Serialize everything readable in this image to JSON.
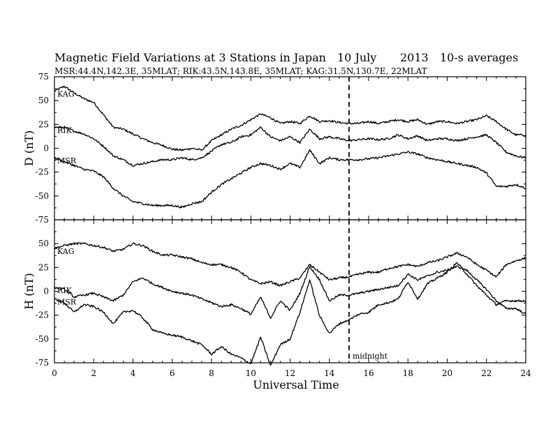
{
  "chart_data": {
    "type": "line",
    "title": "Magnetic Field Variations at 3 Stations in Japan",
    "date_day": "10 July",
    "date_year": "2013",
    "averaging": "10-s averages",
    "subtitle": "MSR:44.4N,142.3E, 35MLAT;  RIK:43.5N,143.8E, 35MLAT;  KAG:31.5N,130.7E, 22MLAT",
    "xlabel": "Universal Time",
    "xlim": [
      0,
      24
    ],
    "xticks": [
      "0",
      "2",
      "4",
      "6",
      "8",
      "10",
      "12",
      "14",
      "16",
      "18",
      "20",
      "22",
      "24"
    ],
    "midnight": {
      "x": 15,
      "label": "midnight"
    },
    "panels": [
      {
        "ylabel": "D (nT)",
        "ylim": [
          -75,
          75
        ],
        "yticks": [
          "75",
          "50",
          "25",
          "0",
          "-25",
          "-50",
          "-75"
        ],
        "series": [
          {
            "name": "KAG",
            "x": [
              0,
              0.5,
              1,
              1.5,
              2,
              2.5,
              3,
              3.5,
              4,
              4.5,
              5,
              5.5,
              6,
              6.5,
              7,
              7.5,
              8,
              8.5,
              9,
              9.5,
              10,
              10.5,
              11,
              11.5,
              12,
              12.5,
              13,
              13.5,
              14,
              14.5,
              15,
              15.5,
              16,
              16.5,
              17,
              17.5,
              18,
              18.5,
              19,
              19.5,
              20,
              20.5,
              21,
              21.5,
              22,
              22.5,
              23,
              23.5,
              24
            ],
            "y": [
              60,
              65,
              58,
              52,
              48,
              35,
              22,
              20,
              15,
              10,
              6,
              3,
              -1,
              -2,
              0,
              -2,
              8,
              14,
              20,
              24,
              30,
              36,
              32,
              26,
              28,
              26,
              34,
              28,
              29,
              27,
              26,
              26,
              28,
              26,
              28,
              30,
              28,
              30,
              25,
              28,
              28,
              26,
              28,
              30,
              34,
              28,
              20,
              14,
              14
            ]
          },
          {
            "name": "RIK",
            "x": [
              0,
              0.5,
              1,
              1.5,
              2,
              2.5,
              3,
              3.5,
              4,
              4.5,
              5,
              5.5,
              6,
              6.5,
              7,
              7.5,
              8,
              8.5,
              9,
              9.5,
              10,
              10.5,
              11,
              11.5,
              12,
              12.5,
              13,
              13.5,
              14,
              14.5,
              15,
              15.5,
              16,
              16.5,
              17,
              17.5,
              18,
              18.5,
              19,
              19.5,
              20,
              20.5,
              21,
              21.5,
              22,
              22.5,
              23,
              23.5,
              24
            ],
            "y": [
              22,
              22,
              18,
              15,
              10,
              2,
              -8,
              -12,
              -18,
              -16,
              -14,
              -12,
              -12,
              -10,
              -12,
              -10,
              -3,
              4,
              6,
              12,
              14,
              22,
              12,
              8,
              12,
              6,
              20,
              10,
              12,
              10,
              8,
              9,
              10,
              9,
              10,
              14,
              10,
              13,
              8,
              10,
              10,
              8,
              10,
              12,
              14,
              6,
              -4,
              -8,
              -10
            ]
          },
          {
            "name": "MSR",
            "x": [
              0,
              0.5,
              1,
              1.5,
              2,
              2.5,
              3,
              3.5,
              4,
              4.5,
              5,
              5.5,
              6,
              6.5,
              7,
              7.5,
              8,
              8.5,
              9,
              9.5,
              10,
              10.5,
              11,
              11.5,
              12,
              12.5,
              13,
              13.5,
              14,
              14.5,
              15,
              15.5,
              16,
              16.5,
              17,
              17.5,
              18,
              18.5,
              19,
              19.5,
              20,
              20.5,
              21,
              21.5,
              22,
              22.5,
              23,
              23.5,
              24
            ],
            "y": [
              -10,
              -14,
              -18,
              -22,
              -24,
              -30,
              -42,
              -50,
              -56,
              -58,
              -60,
              -60,
              -60,
              -62,
              -58,
              -56,
              -46,
              -38,
              -32,
              -26,
              -20,
              -16,
              -18,
              -22,
              -16,
              -20,
              -2,
              -16,
              -10,
              -12,
              -12,
              -12,
              -11,
              -10,
              -8,
              -6,
              -4,
              -6,
              -10,
              -12,
              -14,
              -16,
              -18,
              -20,
              -26,
              -40,
              -40,
              -38,
              -42
            ]
          }
        ]
      },
      {
        "ylabel": "H (nT)",
        "ylim": [
          -75,
          75
        ],
        "yticks": [
          "75",
          "50",
          "25",
          "0",
          "-25",
          "-50",
          "-75"
        ],
        "series": [
          {
            "name": "KAG",
            "x": [
              0,
              0.5,
              1,
              1.5,
              2,
              2.5,
              3,
              3.5,
              4,
              4.5,
              5,
              5.5,
              6,
              6.5,
              7,
              7.5,
              8,
              8.5,
              9,
              9.5,
              10,
              10.5,
              11,
              11.5,
              12,
              12.5,
              13,
              13.5,
              14,
              14.5,
              15,
              15.5,
              16,
              16.5,
              17,
              17.5,
              18,
              18.5,
              19,
              19.5,
              20,
              20.5,
              21,
              21.5,
              22,
              22.5,
              23,
              23.5,
              24
            ],
            "y": [
              45,
              48,
              50,
              50,
              48,
              46,
              42,
              44,
              50,
              48,
              42,
              38,
              38,
              36,
              34,
              30,
              28,
              28,
              25,
              20,
              12,
              8,
              10,
              6,
              10,
              14,
              28,
              20,
              12,
              14,
              15,
              18,
              20,
              20,
              24,
              26,
              28,
              26,
              30,
              32,
              36,
              40,
              36,
              28,
              22,
              15,
              28,
              32,
              35
            ]
          },
          {
            "name": "RIK",
            "x": [
              0,
              0.5,
              1,
              1.5,
              2,
              2.5,
              3,
              3.5,
              4,
              4.5,
              5,
              5.5,
              6,
              6.5,
              7,
              7.5,
              8,
              8.5,
              9,
              9.5,
              10,
              10.5,
              11,
              11.5,
              12,
              12.5,
              13,
              13.5,
              14,
              14.5,
              15,
              15.5,
              16,
              16.5,
              17,
              17.5,
              18,
              18.5,
              19,
              19.5,
              20,
              20.5,
              21,
              21.5,
              22,
              22.5,
              23,
              23.5,
              24
            ],
            "y": [
              4,
              2,
              -6,
              -4,
              -2,
              -6,
              -10,
              -4,
              10,
              14,
              8,
              4,
              0,
              -2,
              -4,
              -8,
              -12,
              -16,
              -14,
              -18,
              -24,
              -6,
              -28,
              -10,
              -20,
              -2,
              26,
              12,
              -10,
              -4,
              -4,
              -2,
              0,
              2,
              4,
              6,
              18,
              12,
              16,
              20,
              22,
              26,
              22,
              12,
              2,
              -10,
              -18,
              -18,
              -24
            ]
          },
          {
            "name": "MSR",
            "x": [
              0,
              0.5,
              1,
              1.5,
              2,
              2.5,
              3,
              3.5,
              4,
              4.5,
              5,
              5.5,
              6,
              6.5,
              7,
              7.5,
              8,
              8.5,
              9,
              9.5,
              10,
              10.5,
              11,
              11.5,
              12,
              12.5,
              13,
              13.5,
              14,
              14.5,
              15,
              15.5,
              16,
              16.5,
              17,
              17.5,
              18,
              18.5,
              19,
              19.5,
              20,
              20.5,
              21,
              21.5,
              22,
              22.5,
              23,
              23.5,
              24
            ],
            "y": [
              -8,
              -12,
              -22,
              -14,
              -16,
              -22,
              -34,
              -22,
              -20,
              -28,
              -40,
              -44,
              -46,
              -48,
              -52,
              -56,
              -66,
              -58,
              -66,
              -70,
              -76,
              -48,
              -78,
              -56,
              -50,
              -22,
              12,
              -26,
              -44,
              -34,
              -30,
              -24,
              -22,
              -14,
              -12,
              -8,
              10,
              -8,
              8,
              14,
              20,
              30,
              18,
              6,
              -4,
              -14,
              -10,
              -10,
              -10
            ]
          }
        ]
      }
    ]
  }
}
